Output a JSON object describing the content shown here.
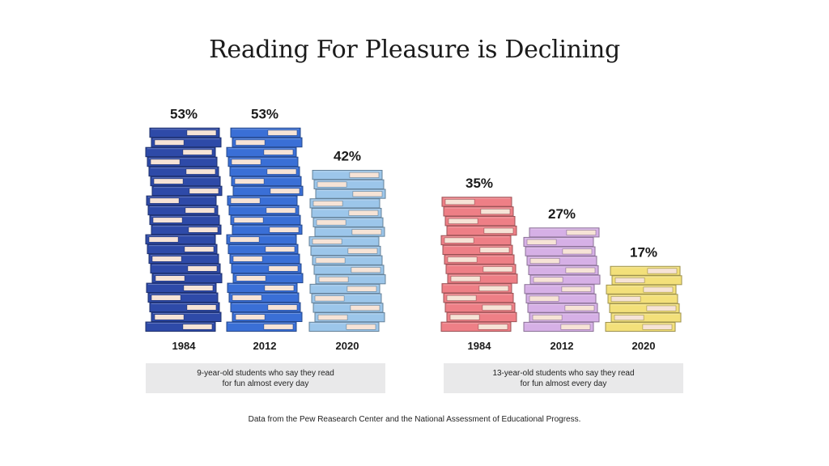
{
  "title": "Reading For Pleasure is Declining",
  "source": "Data from the Pew Reasearch Center and the National Assessment of Educational Progress.",
  "chart_data": [
    {
      "type": "bar",
      "categories": [
        "1984",
        "2012",
        "2020"
      ],
      "values": [
        53,
        53,
        42
      ],
      "data_labels": [
        "53%",
        "53%",
        "42%"
      ],
      "unit": "%",
      "caption": "9-year-old students who say they read for fun almost every day",
      "colors": [
        "#2e4aa8",
        "#3a6fd6",
        "#9cc6ea"
      ]
    },
    {
      "type": "bar",
      "categories": [
        "1984",
        "2012",
        "2020"
      ],
      "values": [
        35,
        27,
        17
      ],
      "data_labels": [
        "35%",
        "27%",
        "17%"
      ],
      "unit": "%",
      "caption": "13-year-old students who say they read for fun almost every day",
      "colors": [
        "#ee7f86",
        "#d6b0e6",
        "#f3e07a"
      ]
    }
  ]
}
